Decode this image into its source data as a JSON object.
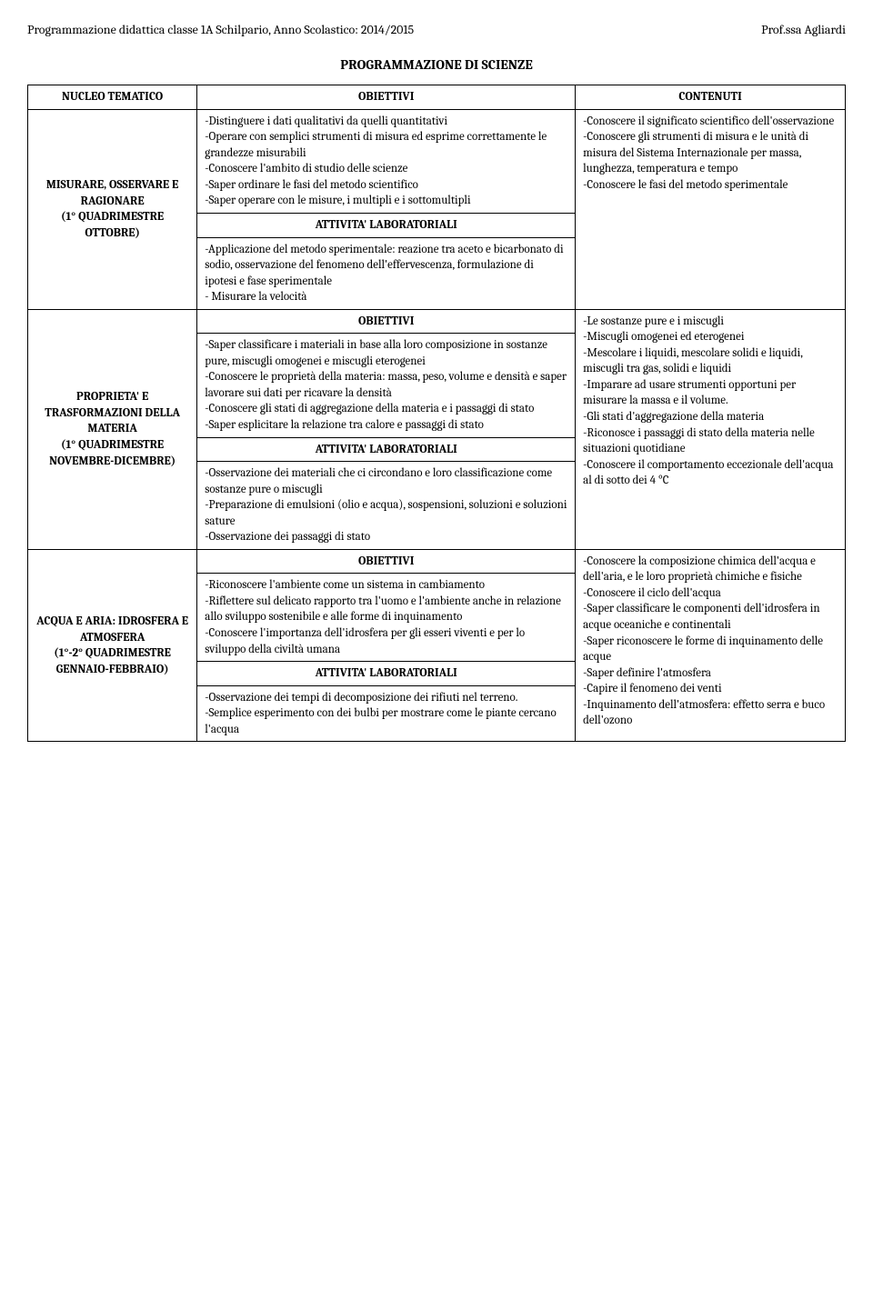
{
  "header": {
    "left": "Programmazione didattica classe 1A Schilpario, Anno Scolastico: 2014/2015",
    "right": "Prof.ssa Agliardi"
  },
  "title": "PROGRAMMAZIONE DI SCIENZE",
  "table": {
    "head": {
      "c1": "NUCLEO TEMATICO",
      "c2": "OBIETTIVI",
      "c3": "CONTENUTI"
    },
    "labels": {
      "obiettivi": "OBIETTIVI",
      "attivita": "ATTIVITA' LABORATORIALI"
    },
    "rows": [
      {
        "nucleo": "MISURARE, OSSERVARE E RAGIONARE\n(1° QUADRIMESTRE OTTOBRE)",
        "obiettivi": "-Distinguere i dati qualitativi da quelli quantitativi\n-Operare con semplici strumenti di misura ed esprime correttamente le grandezze misurabili\n-Conoscere l'ambito di studio delle scienze\n-Saper ordinare le fasi del metodo scientifico\n-Saper operare con le misure, i multipli e i sottomultipli",
        "attivita": "-Applicazione del metodo sperimentale: reazione tra aceto e bicarbonato di sodio, osservazione del fenomeno dell'effervescenza, formulazione di ipotesi e fase sperimentale\n- Misurare la velocità",
        "contenuti": "-Conoscere il significato scientifico dell'osservazione\n-Conoscere gli strumenti di misura e le unità di misura del Sistema Internazionale per massa, lunghezza, temperatura e tempo\n-Conoscere le fasi del metodo sperimentale"
      },
      {
        "nucleo": "PROPRIETA' E TRASFORMAZIONI DELLA MATERIA\n(1° QUADRIMESTRE NOVEMBRE-DICEMBRE)",
        "obiettivi": "-Saper classificare i materiali in base alla loro composizione in sostanze pure, miscugli omogenei e miscugli eterogenei\n-Conoscere le proprietà della materia: massa, peso, volume e densità e saper lavorare sui dati per ricavare la densità\n-Conoscere gli stati di aggregazione della materia e i passaggi di stato\n-Saper esplicitare la relazione tra calore e passaggi di stato",
        "attivita": "-Osservazione dei materiali che ci circondano e loro classificazione come sostanze pure o miscugli\n-Preparazione di emulsioni (olio e acqua), sospensioni, soluzioni e soluzioni sature\n-Osservazione dei passaggi di stato",
        "contenuti": "-Le sostanze pure e i miscugli\n-Miscugli omogenei ed eterogenei\n-Mescolare i liquidi, mescolare solidi e liquidi, miscugli tra gas, solidi e liquidi\n-Imparare ad usare strumenti opportuni per misurare la massa e il volume.\n-Gli stati d'aggregazione della materia\n-Riconosce i passaggi di stato della materia nelle situazioni quotidiane\n-Conoscere il comportamento eccezionale dell'acqua al di sotto dei 4 °C"
      },
      {
        "nucleo": "ACQUA E ARIA: IDROSFERA E ATMOSFERA\n(1°-2° QUADRIMESTRE GENNAIO-FEBBRAIO)",
        "obiettivi": "-Riconoscere l'ambiente come un sistema in cambiamento\n-Riflettere sul delicato rapporto tra l'uomo e l'ambiente anche in relazione allo sviluppo sostenibile e alle forme di inquinamento\n-Conoscere l'importanza dell'idrosfera per gli esseri viventi e per lo sviluppo della civiltà umana",
        "attivita": "-Osservazione dei tempi di decomposizione dei rifiuti nel terreno.\n-Semplice esperimento con dei bulbi per mostrare come le piante cercano l'acqua",
        "contenuti": "-Conoscere la composizione chimica dell'acqua e dell'aria, e le loro proprietà chimiche e fisiche\n-Conoscere il ciclo dell'acqua\n-Saper classificare le componenti dell'idrosfera in acque oceaniche e continentali\n-Saper riconoscere le forme di inquinamento delle acque\n-Saper definire l'atmosfera\n-Capire il fenomeno dei venti\n-Inquinamento dell'atmosfera: effetto serra e buco dell'ozono"
      }
    ]
  }
}
